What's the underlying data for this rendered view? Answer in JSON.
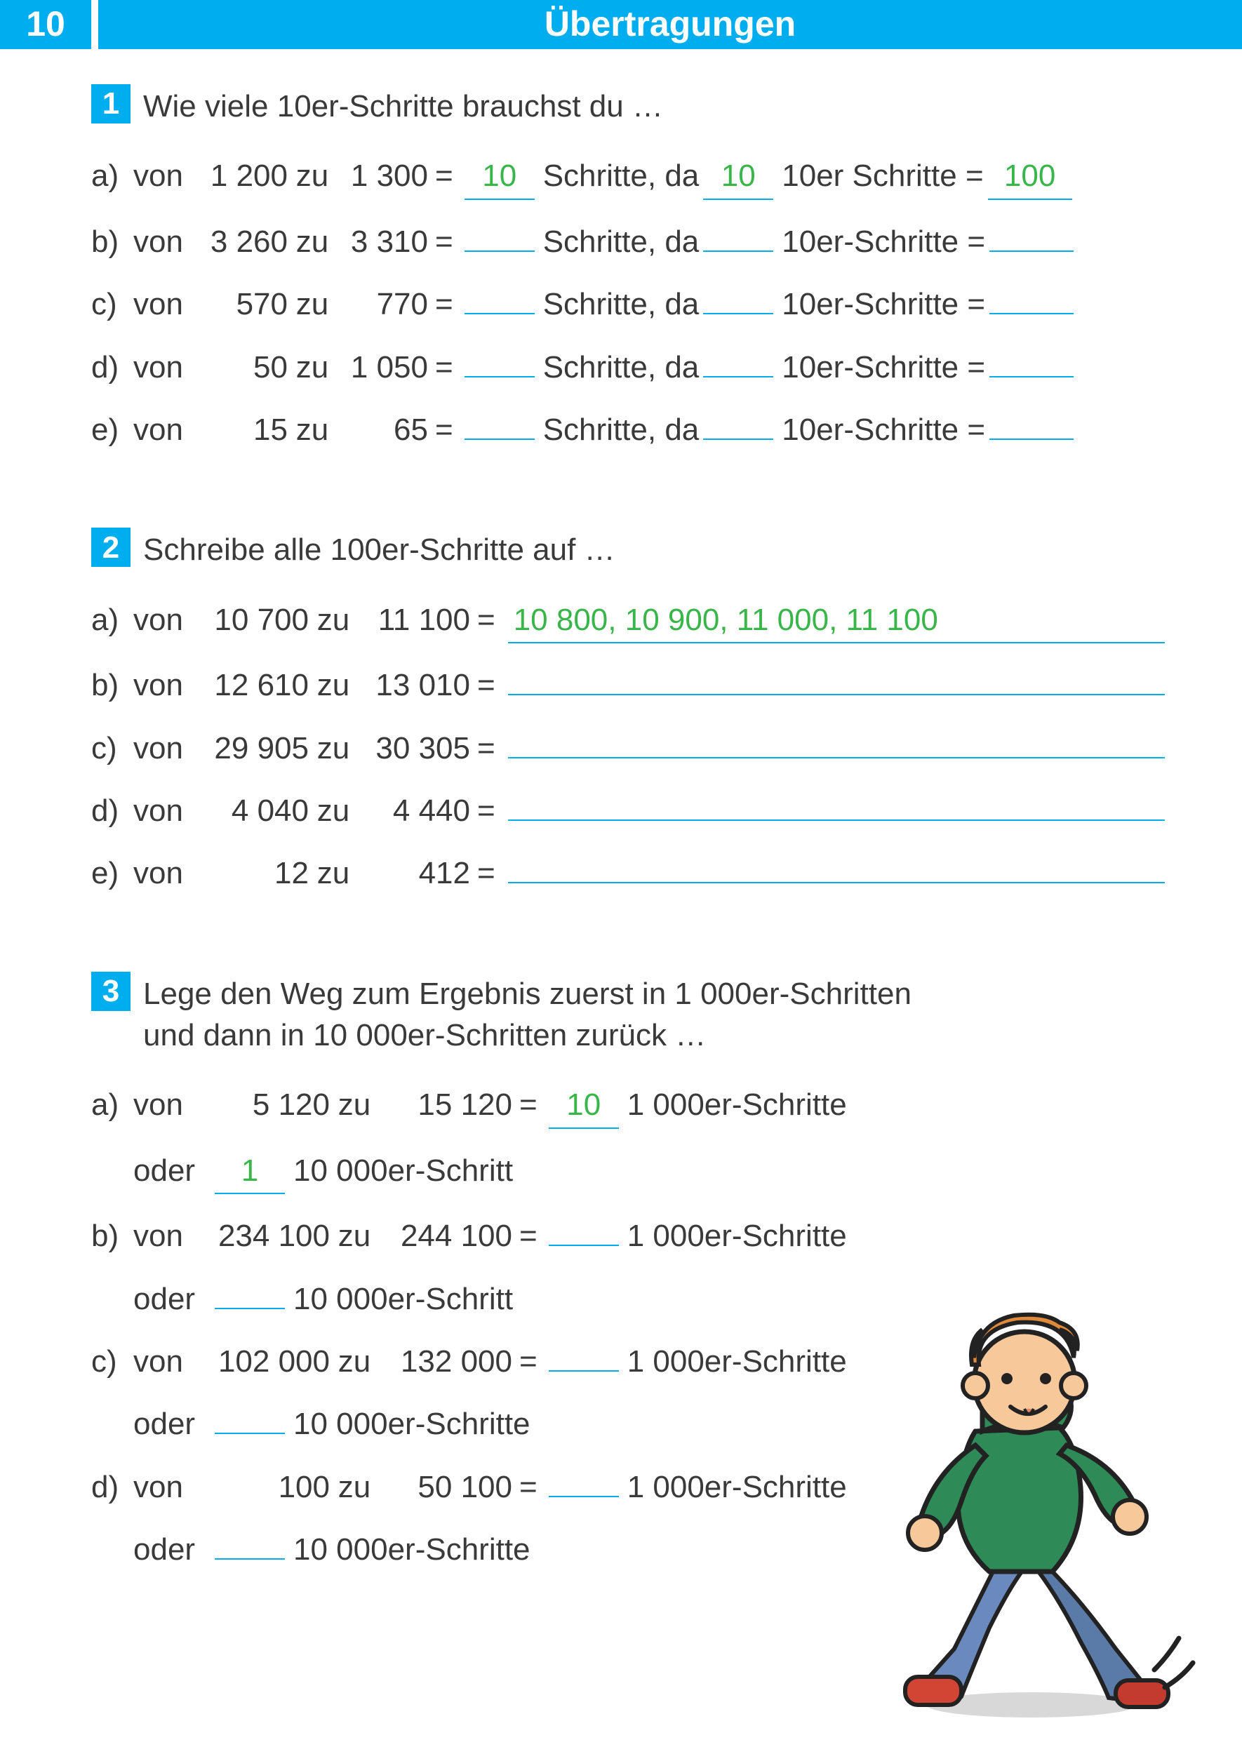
{
  "header": {
    "page_number": "10",
    "title": "Übertragungen"
  },
  "colors": {
    "accent": "#00aeef",
    "answer": "#39b54a",
    "text": "#3a3a3a"
  },
  "q1": {
    "number": "1",
    "prompt": "Wie viele 10er-Schritte brauchst du …",
    "rows": [
      {
        "label": "a)",
        "from": "1 200",
        "to": "1 300",
        "ans1": "10",
        "mid": "Schritte, da",
        "ans2": "10",
        "after2": "10er Schritte =",
        "ans3": "100"
      },
      {
        "label": "b)",
        "from": "3 260",
        "to": "3 310",
        "ans1": "",
        "mid": "Schritte, da",
        "ans2": "",
        "after2": "10er-Schritte =",
        "ans3": ""
      },
      {
        "label": "c)",
        "from": "570",
        "to": "770",
        "ans1": "",
        "mid": "Schritte, da",
        "ans2": "",
        "after2": "10er-Schritte =",
        "ans3": ""
      },
      {
        "label": "d)",
        "from": "50",
        "to": "1 050",
        "ans1": "",
        "mid": "Schritte, da",
        "ans2": "",
        "after2": "10er-Schritte =",
        "ans3": ""
      },
      {
        "label": "e)",
        "from": "15",
        "to": "65",
        "ans1": "",
        "mid": "Schritte, da",
        "ans2": "",
        "after2": "10er-Schritte =",
        "ans3": ""
      }
    ]
  },
  "q2": {
    "number": "2",
    "prompt": "Schreibe alle 100er-Schritte auf …",
    "rows": [
      {
        "label": "a)",
        "from": "10 700",
        "to": "11 100",
        "answer": "10 800, 10 900, 11 000, 11 100"
      },
      {
        "label": "b)",
        "from": "12 610",
        "to": "13 010",
        "answer": ""
      },
      {
        "label": "c)",
        "from": "29 905",
        "to": "30 305",
        "answer": ""
      },
      {
        "label": "d)",
        "from": "4 040",
        "to": "4 440",
        "answer": ""
      },
      {
        "label": "e)",
        "from": "12",
        "to": "412",
        "answer": ""
      }
    ]
  },
  "q3": {
    "number": "3",
    "prompt_l1": "Lege den Weg zum Ergebnis zuerst in 1 000er-Schritten",
    "prompt_l2": "und dann in 10 000er-Schritten zurück …",
    "rows": [
      {
        "label": "a)",
        "from": "5 120",
        "to": "15 120",
        "ans1": "10",
        "after1": "1 000er-Schritte",
        "oder": "oder",
        "ans2": "1",
        "after2": "10 000er-Schritt"
      },
      {
        "label": "b)",
        "from": "234 100",
        "to": "244 100",
        "ans1": "",
        "after1": "1 000er-Schritte",
        "oder": "oder",
        "ans2": "",
        "after2": "10 000er-Schritt"
      },
      {
        "label": "c)",
        "from": "102 000",
        "to": "132 000",
        "ans1": "",
        "after1": "1 000er-Schritte",
        "oder": "oder",
        "ans2": "",
        "after2": "10 000er-Schritte"
      },
      {
        "label": "d)",
        "from": "100",
        "to": "50 100",
        "ans1": "",
        "after1": "1 000er-Schritte",
        "oder": "oder",
        "ans2": "",
        "after2": "10 000er-Schritte"
      }
    ]
  },
  "labels": {
    "von": "von",
    "zu": "zu",
    "eq": "="
  },
  "layout": {
    "q1_from_w": 130,
    "q1_to_w": 130,
    "q2_from_w": 160,
    "q2_to_w": 160,
    "q3_from_w": 190,
    "q3_to_w": 190
  }
}
